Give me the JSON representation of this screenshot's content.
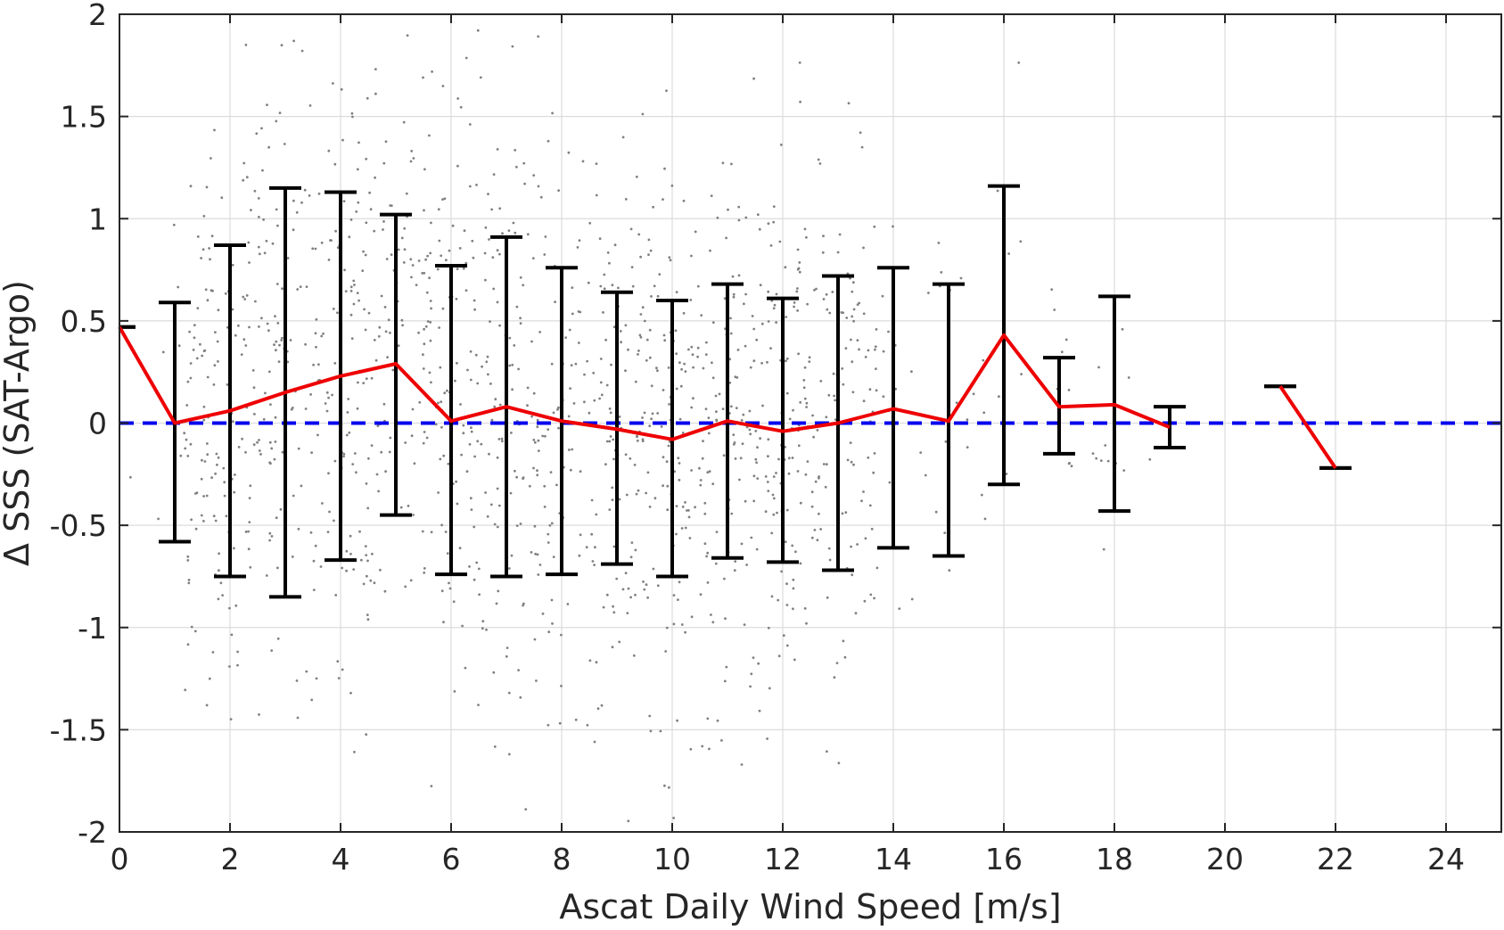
{
  "chart_data": {
    "type": "scatter",
    "title": "",
    "xlabel": "Ascat Daily Wind Speed [m/s]",
    "ylabel": "Δ SSS (SAT-Argo)",
    "xlim": [
      0,
      25
    ],
    "ylim": [
      -2,
      2
    ],
    "x_ticks": [
      0,
      2,
      4,
      6,
      8,
      10,
      12,
      14,
      16,
      18,
      20,
      22,
      24
    ],
    "y_ticks": [
      -2,
      -1.5,
      -1,
      -0.5,
      0,
      0.5,
      1,
      1.5,
      2
    ],
    "x_tick_labels": [
      "0",
      "2",
      "4",
      "6",
      "8",
      "10",
      "12",
      "14",
      "16",
      "18",
      "20",
      "22",
      "24"
    ],
    "y_tick_labels": [
      "-2",
      "-1.5",
      "-1",
      "-0.5",
      "0",
      "0.5",
      "1",
      "1.5",
      "2"
    ],
    "grid": true,
    "reference_line": {
      "y": 0,
      "color": "#0000ee",
      "style": "dashed"
    },
    "mean_line_color": "#ee0000",
    "errorbar_color": "#000000",
    "scatter_color": "#808080",
    "scatter_note_count": 1400,
    "scatter_distribution": {
      "x_range": [
        0,
        19
      ],
      "y_spread_by_x": [
        [
          0,
          0.55
        ],
        [
          2,
          0.75
        ],
        [
          3,
          0.95
        ],
        [
          4,
          0.85
        ],
        [
          5,
          0.75
        ],
        [
          6,
          0.7
        ],
        [
          7,
          0.8
        ],
        [
          8,
          0.7
        ],
        [
          9,
          0.65
        ],
        [
          10,
          0.65
        ],
        [
          11,
          0.65
        ],
        [
          12,
          0.6
        ],
        [
          13,
          0.65
        ],
        [
          14,
          0.65
        ],
        [
          15,
          0.6
        ],
        [
          16,
          0.7
        ],
        [
          17,
          0.3
        ],
        [
          18,
          0.5
        ],
        [
          19,
          0.15
        ]
      ],
      "y_center_by_x": [
        [
          0,
          0.3
        ],
        [
          1,
          0.05
        ],
        [
          2,
          0.05
        ],
        [
          3,
          0.15
        ],
        [
          4,
          0.22
        ],
        [
          5,
          0.28
        ],
        [
          6,
          0.02
        ],
        [
          7,
          0.08
        ],
        [
          8,
          0.01
        ],
        [
          9,
          -0.03
        ],
        [
          10,
          -0.08
        ],
        [
          11,
          0.01
        ],
        [
          12,
          -0.04
        ],
        [
          13,
          0.0
        ],
        [
          14,
          0.07
        ],
        [
          15,
          0.02
        ],
        [
          16,
          0.4
        ],
        [
          17,
          0.08
        ],
        [
          18,
          0.09
        ],
        [
          19,
          -0.02
        ]
      ]
    },
    "mean_segments": [
      {
        "x": [
          0,
          1,
          2,
          3,
          4,
          5,
          6,
          7,
          8,
          9,
          10,
          11,
          12,
          13,
          14,
          15,
          16,
          17,
          18,
          19
        ],
        "y": [
          0.47,
          0.0,
          0.06,
          0.15,
          0.23,
          0.29,
          0.01,
          0.08,
          0.01,
          -0.03,
          -0.08,
          0.01,
          -0.04,
          0.0,
          0.07,
          0.01,
          0.43,
          0.08,
          0.09,
          -0.02
        ]
      },
      {
        "x": [
          21,
          22
        ],
        "y": [
          0.18,
          -0.22
        ]
      }
    ],
    "error_bars": [
      {
        "x": 0,
        "lower": 0.47,
        "upper": 0.47
      },
      {
        "x": 1,
        "lower": -0.58,
        "upper": 0.59
      },
      {
        "x": 2,
        "lower": -0.75,
        "upper": 0.87
      },
      {
        "x": 3,
        "lower": -0.85,
        "upper": 1.15
      },
      {
        "x": 4,
        "lower": -0.67,
        "upper": 1.13
      },
      {
        "x": 5,
        "lower": -0.45,
        "upper": 1.02
      },
      {
        "x": 6,
        "lower": -0.74,
        "upper": 0.77
      },
      {
        "x": 7,
        "lower": -0.75,
        "upper": 0.91
      },
      {
        "x": 8,
        "lower": -0.74,
        "upper": 0.76
      },
      {
        "x": 9,
        "lower": -0.69,
        "upper": 0.64
      },
      {
        "x": 10,
        "lower": -0.75,
        "upper": 0.6
      },
      {
        "x": 11,
        "lower": -0.66,
        "upper": 0.68
      },
      {
        "x": 12,
        "lower": -0.68,
        "upper": 0.61
      },
      {
        "x": 13,
        "lower": -0.72,
        "upper": 0.72
      },
      {
        "x": 14,
        "lower": -0.61,
        "upper": 0.76
      },
      {
        "x": 15,
        "lower": -0.65,
        "upper": 0.68
      },
      {
        "x": 16,
        "lower": -0.3,
        "upper": 1.16
      },
      {
        "x": 17,
        "lower": -0.15,
        "upper": 0.32
      },
      {
        "x": 18,
        "lower": -0.43,
        "upper": 0.62
      },
      {
        "x": 19,
        "lower": -0.12,
        "upper": 0.08
      },
      {
        "x": 21,
        "lower": 0.18,
        "upper": 0.18
      },
      {
        "x": 22,
        "lower": -0.22,
        "upper": -0.22
      }
    ]
  }
}
